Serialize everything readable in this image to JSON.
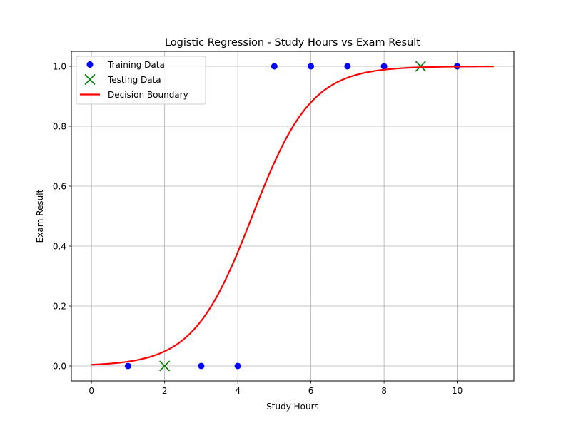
{
  "chart_data": {
    "type": "scatter",
    "title": "Logistic Regression - Study Hours vs Exam Result",
    "xlabel": "Study Hours",
    "ylabel": "Exam Result",
    "xlim": [
      -0.55,
      11.55
    ],
    "ylim": [
      -0.05,
      1.05
    ],
    "xticks": [
      0,
      2,
      4,
      6,
      8,
      10
    ],
    "yticks": [
      0.0,
      0.2,
      0.4,
      0.6,
      0.8,
      1.0
    ],
    "xtick_labels": [
      "0",
      "2",
      "4",
      "6",
      "8",
      "10"
    ],
    "ytick_labels": [
      "0.0",
      "0.2",
      "0.4",
      "0.6",
      "0.8",
      "1.0"
    ],
    "grid": true,
    "legend_position": "top-left",
    "series": [
      {
        "name": "Training Data",
        "kind": "scatter",
        "marker": "circle",
        "color": "#0000ff",
        "points": [
          [
            1,
            0
          ],
          [
            3,
            0
          ],
          [
            4,
            0
          ],
          [
            5,
            1
          ],
          [
            6,
            1
          ],
          [
            7,
            1
          ],
          [
            8,
            1
          ],
          [
            10,
            1
          ]
        ]
      },
      {
        "name": "Testing Data",
        "kind": "scatter",
        "marker": "x",
        "color": "#008000",
        "points": [
          [
            2,
            0
          ],
          [
            9,
            1
          ]
        ]
      },
      {
        "name": "Decision Boundary",
        "kind": "line",
        "color": "#ff0000",
        "x_range": [
          0,
          11
        ],
        "logistic": {
          "slope": 1.24,
          "intercept": -5.45
        }
      }
    ]
  }
}
